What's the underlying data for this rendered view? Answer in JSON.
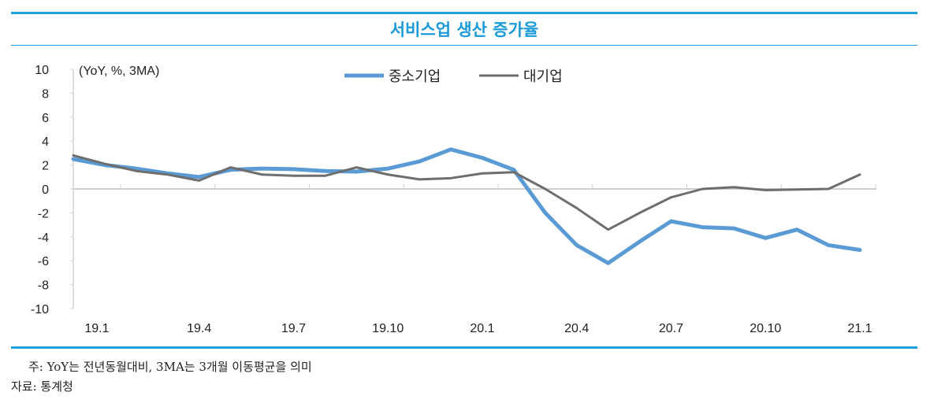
{
  "chart_data": {
    "type": "line",
    "title": "서비스업 생산 증가율",
    "unit_label": "(YoY, %, 3MA)",
    "categories": [
      "18.12",
      "19.1",
      "19.2",
      "19.3",
      "19.4",
      "19.5",
      "19.6",
      "19.7",
      "19.8",
      "19.9",
      "19.10",
      "19.11",
      "19.12",
      "20.1",
      "20.2",
      "20.3",
      "20.4",
      "20.5",
      "20.6",
      "20.7",
      "20.8",
      "20.9",
      "20.10",
      "20.11",
      "20.12",
      "21.1"
    ],
    "x_tick_labels": [
      "19.1",
      "19.4",
      "19.7",
      "19.10",
      "20.1",
      "20.4",
      "20.7",
      "20.10",
      "21.1"
    ],
    "ylim": [
      -10,
      10
    ],
    "y_ticks": [
      10,
      8,
      6,
      4,
      2,
      0,
      -2,
      -4,
      -6,
      -8,
      -10
    ],
    "legend_position": "top",
    "series": [
      {
        "name": "중소기업",
        "color": "#5b9bd5",
        "values": [
          2.5,
          2.0,
          1.7,
          1.3,
          1.0,
          1.6,
          1.7,
          1.65,
          1.5,
          1.45,
          1.7,
          2.3,
          3.3,
          2.6,
          1.6,
          -2.0,
          -4.7,
          -6.2,
          -4.4,
          -2.7,
          -3.2,
          -3.3,
          -4.1,
          -3.4,
          -4.7,
          -5.1
        ]
      },
      {
        "name": "대기업",
        "color": "#6e6e6e",
        "values": [
          2.8,
          2.1,
          1.5,
          1.2,
          0.7,
          1.8,
          1.2,
          1.1,
          1.1,
          1.8,
          1.2,
          0.8,
          0.9,
          1.3,
          1.4,
          0.0,
          -1.6,
          -3.4,
          -2.0,
          -0.7,
          0.0,
          0.15,
          -0.1,
          -0.05,
          0.0,
          1.2
        ]
      }
    ]
  },
  "notes": {
    "note": "주: YoY는 전년동월대비, 3MA는 3개월 이동평균을 의미",
    "source": "자료: 통계청"
  }
}
